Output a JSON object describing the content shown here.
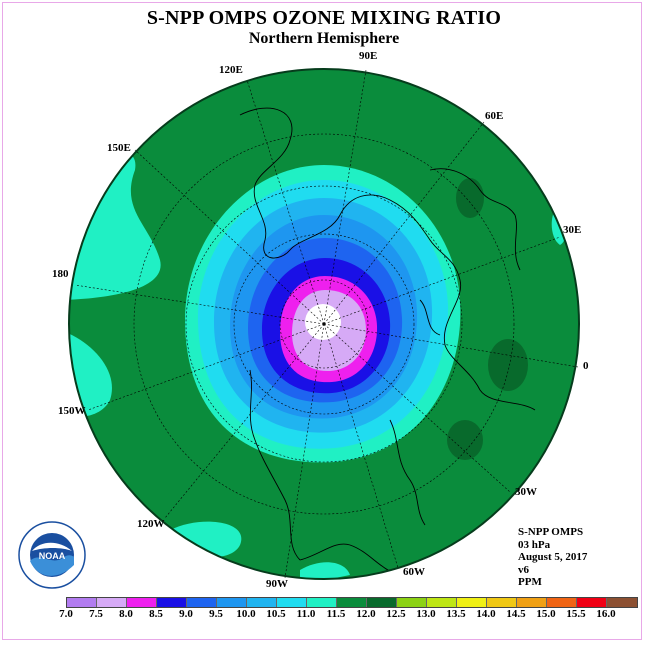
{
  "title": "S-NPP OMPS OZONE MIXING RATIO",
  "subtitle": "Northern Hemisphere",
  "longitude_labels": {
    "e90": "90E",
    "e120": "120E",
    "e60": "60E",
    "e150": "150E",
    "e30": "30E",
    "d180": "180",
    "d0": "0",
    "w150": "150W",
    "w30": "30W",
    "w120": "120W",
    "w60": "60W",
    "w90": "90W"
  },
  "info": {
    "instrument": "S-NPP OMPS",
    "level": "03 hPa",
    "date": "August 5, 2017",
    "version": "v6",
    "units": "PPM"
  },
  "logo_text": "NOAA",
  "colorbar": {
    "ticks": [
      "7.0",
      "7.5",
      "8.0",
      "8.5",
      "9.0",
      "9.5",
      "10.0",
      "10.5",
      "11.0",
      "11.5",
      "12.0",
      "12.5",
      "13.0",
      "13.5",
      "14.0",
      "14.5",
      "15.0",
      "15.5",
      "16.0"
    ],
    "colors": [
      "#b27cf0",
      "#d6aaf6",
      "#ee20ee",
      "#1a10e6",
      "#1e64f0",
      "#1e96f0",
      "#20b4f0",
      "#20dcf0",
      "#20f0c4",
      "#0a8c3c",
      "#086a2c",
      "#8cd214",
      "#bee614",
      "#f0f014",
      "#f0c814",
      "#f0a014",
      "#f06414",
      "#f00014",
      "#8c5032"
    ]
  }
}
